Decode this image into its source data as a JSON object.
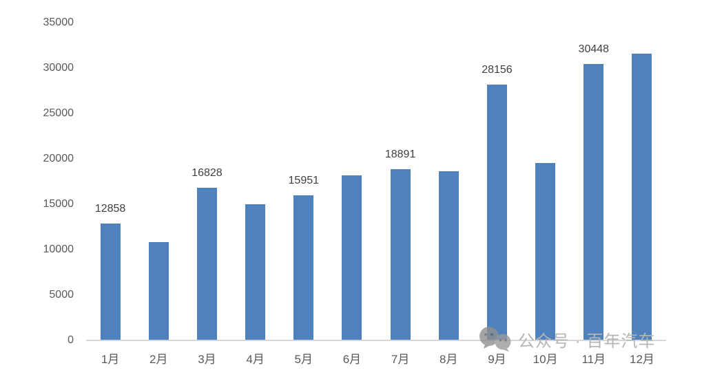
{
  "watermark": {
    "text": "公众号 · 百年汽车",
    "icon": "wechat-chat-bubbles"
  },
  "chart_data": {
    "type": "bar",
    "title": "",
    "xlabel": "",
    "ylabel": "",
    "categories": [
      "1月",
      "2月",
      "3月",
      "4月",
      "5月",
      "6月",
      "7月",
      "8月",
      "9月",
      "10月",
      "11月",
      "12月"
    ],
    "values": [
      12858,
      10850,
      16828,
      15000,
      15951,
      18200,
      18891,
      18650,
      28156,
      19550,
      30448,
      31600
    ],
    "data_labels": [
      "12858",
      "",
      "16828",
      "",
      "15951",
      "",
      "18891",
      "",
      "28156",
      "",
      "30448",
      ""
    ],
    "yticks": [
      0,
      5000,
      10000,
      15000,
      20000,
      25000,
      30000,
      35000
    ],
    "ylim": [
      0,
      35000
    ],
    "grid": false,
    "legend": false,
    "bar_color": "#4f81bd",
    "axis_line_color": "#d6d6d6",
    "tick_label_color": "#595959",
    "data_label_color": "#3f3f3f",
    "watermark_color": "#b5b5b5",
    "watermark_icon_color": "#8f8f8f"
  }
}
